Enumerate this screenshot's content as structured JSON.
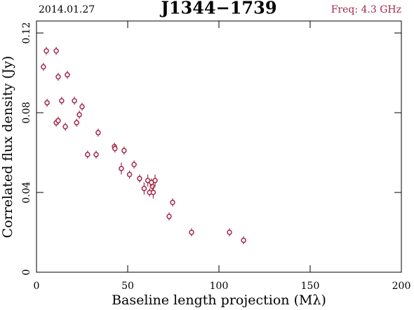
{
  "chart_data": {
    "type": "scatter",
    "date": "2014.01.27",
    "title": "J1344−1739",
    "subtitle": "Freq: 4.3 GHz",
    "x_label": "Baseline length projection (Mλ)",
    "y_label": "Correlated flux density (Jy)",
    "color": "#a3294a",
    "x": [
      3.8,
      5.4,
      10.8,
      5.8,
      11.9,
      16.9,
      13.8,
      10.8,
      11.9,
      15.8,
      20.8,
      25,
      23.5,
      22,
      33.8,
      28,
      32.7,
      42.7,
      43,
      48,
      46.5,
      51,
      53.5,
      56.5,
      59,
      61,
      62,
      63.5,
      64,
      65,
      63,
      74.6,
      72.7,
      85,
      105.8,
      113.5
    ],
    "values": [
      0.103,
      0.111,
      0.111,
      0.085,
      0.098,
      0.099,
      0.086,
      0.075,
      0.076,
      0.073,
      0.086,
      0.083,
      0.079,
      0.075,
      0.07,
      0.059,
      0.059,
      0.063,
      0.062,
      0.061,
      0.052,
      0.049,
      0.054,
      0.047,
      0.042,
      0.046,
      0.04,
      0.043,
      0.04,
      0.046,
      0.045,
      0.035,
      0.028,
      0.02,
      0.02,
      0.016
    ],
    "errors": [
      0.002,
      0.002,
      0.002,
      0.002,
      0.002,
      0.002,
      0.002,
      0.002,
      0.002,
      0.002,
      0.002,
      0.002,
      0.002,
      0.002,
      0.002,
      0.002,
      0.002,
      0.002,
      0.002,
      0.002,
      0.003,
      0.002,
      0.002,
      0.002,
      0.003,
      0.003,
      0.002,
      0.003,
      0.003,
      0.003,
      0.002,
      0.002,
      0.002,
      0.002,
      0.002,
      0.002
    ],
    "xlim": [
      0,
      200
    ],
    "xticks": [
      0,
      50,
      100,
      150,
      200
    ],
    "ylim": [
      0,
      0.126
    ],
    "yticks": [
      0,
      0.04,
      0.08,
      0.12
    ]
  }
}
